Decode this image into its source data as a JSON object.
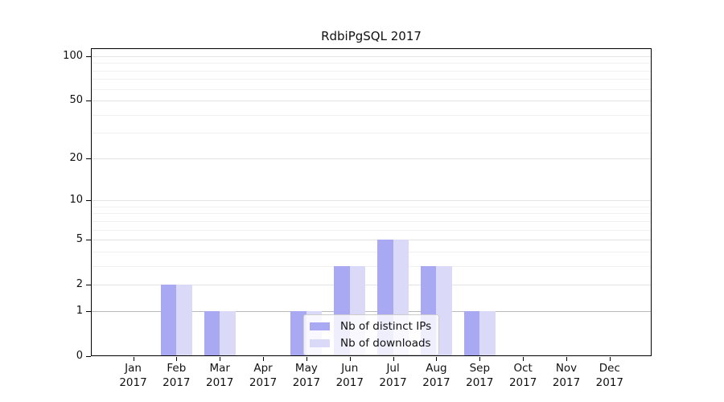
{
  "chart": {
    "title": "RdbiPgSQL 2017"
  },
  "chart_data": {
    "type": "bar",
    "title": "RdbiPgSQL 2017",
    "categories": [
      "Jan",
      "Feb",
      "Mar",
      "Apr",
      "May",
      "Jun",
      "Jul",
      "Aug",
      "Sep",
      "Oct",
      "Nov",
      "Dec"
    ],
    "category_year": "2017",
    "series": [
      {
        "name": "Nb of distinct IPs",
        "color": "#a9a9f3",
        "values": [
          0,
          2,
          1,
          0,
          1,
          3,
          5,
          3,
          1,
          0,
          0,
          0
        ]
      },
      {
        "name": "Nb of downloads",
        "color": "#dadaf8",
        "values": [
          0,
          2,
          1,
          0,
          1,
          3,
          5,
          3,
          1,
          0,
          0,
          0
        ]
      }
    ],
    "xlabel": "",
    "ylabel": "",
    "yscale": "log1p",
    "ylim": [
      0,
      112
    ],
    "y_major_ticks": [
      0,
      1,
      2,
      5,
      10,
      20,
      50,
      100
    ],
    "y_minor_ticks": [
      3,
      4,
      6,
      7,
      8,
      9,
      30,
      40,
      60,
      70,
      80,
      90
    ],
    "grid": "horizontal",
    "legend_position": "inside-lower-center",
    "colors": {
      "axis": "#000000",
      "text": "#111111",
      "grid_major": "#e3e3e3",
      "grid_minor": "#f0f0f0",
      "grid_baseline": "#b9b9b9",
      "legend_border": "#cccccc",
      "legend_bg": "rgba(255,255,255,0.8)"
    }
  }
}
